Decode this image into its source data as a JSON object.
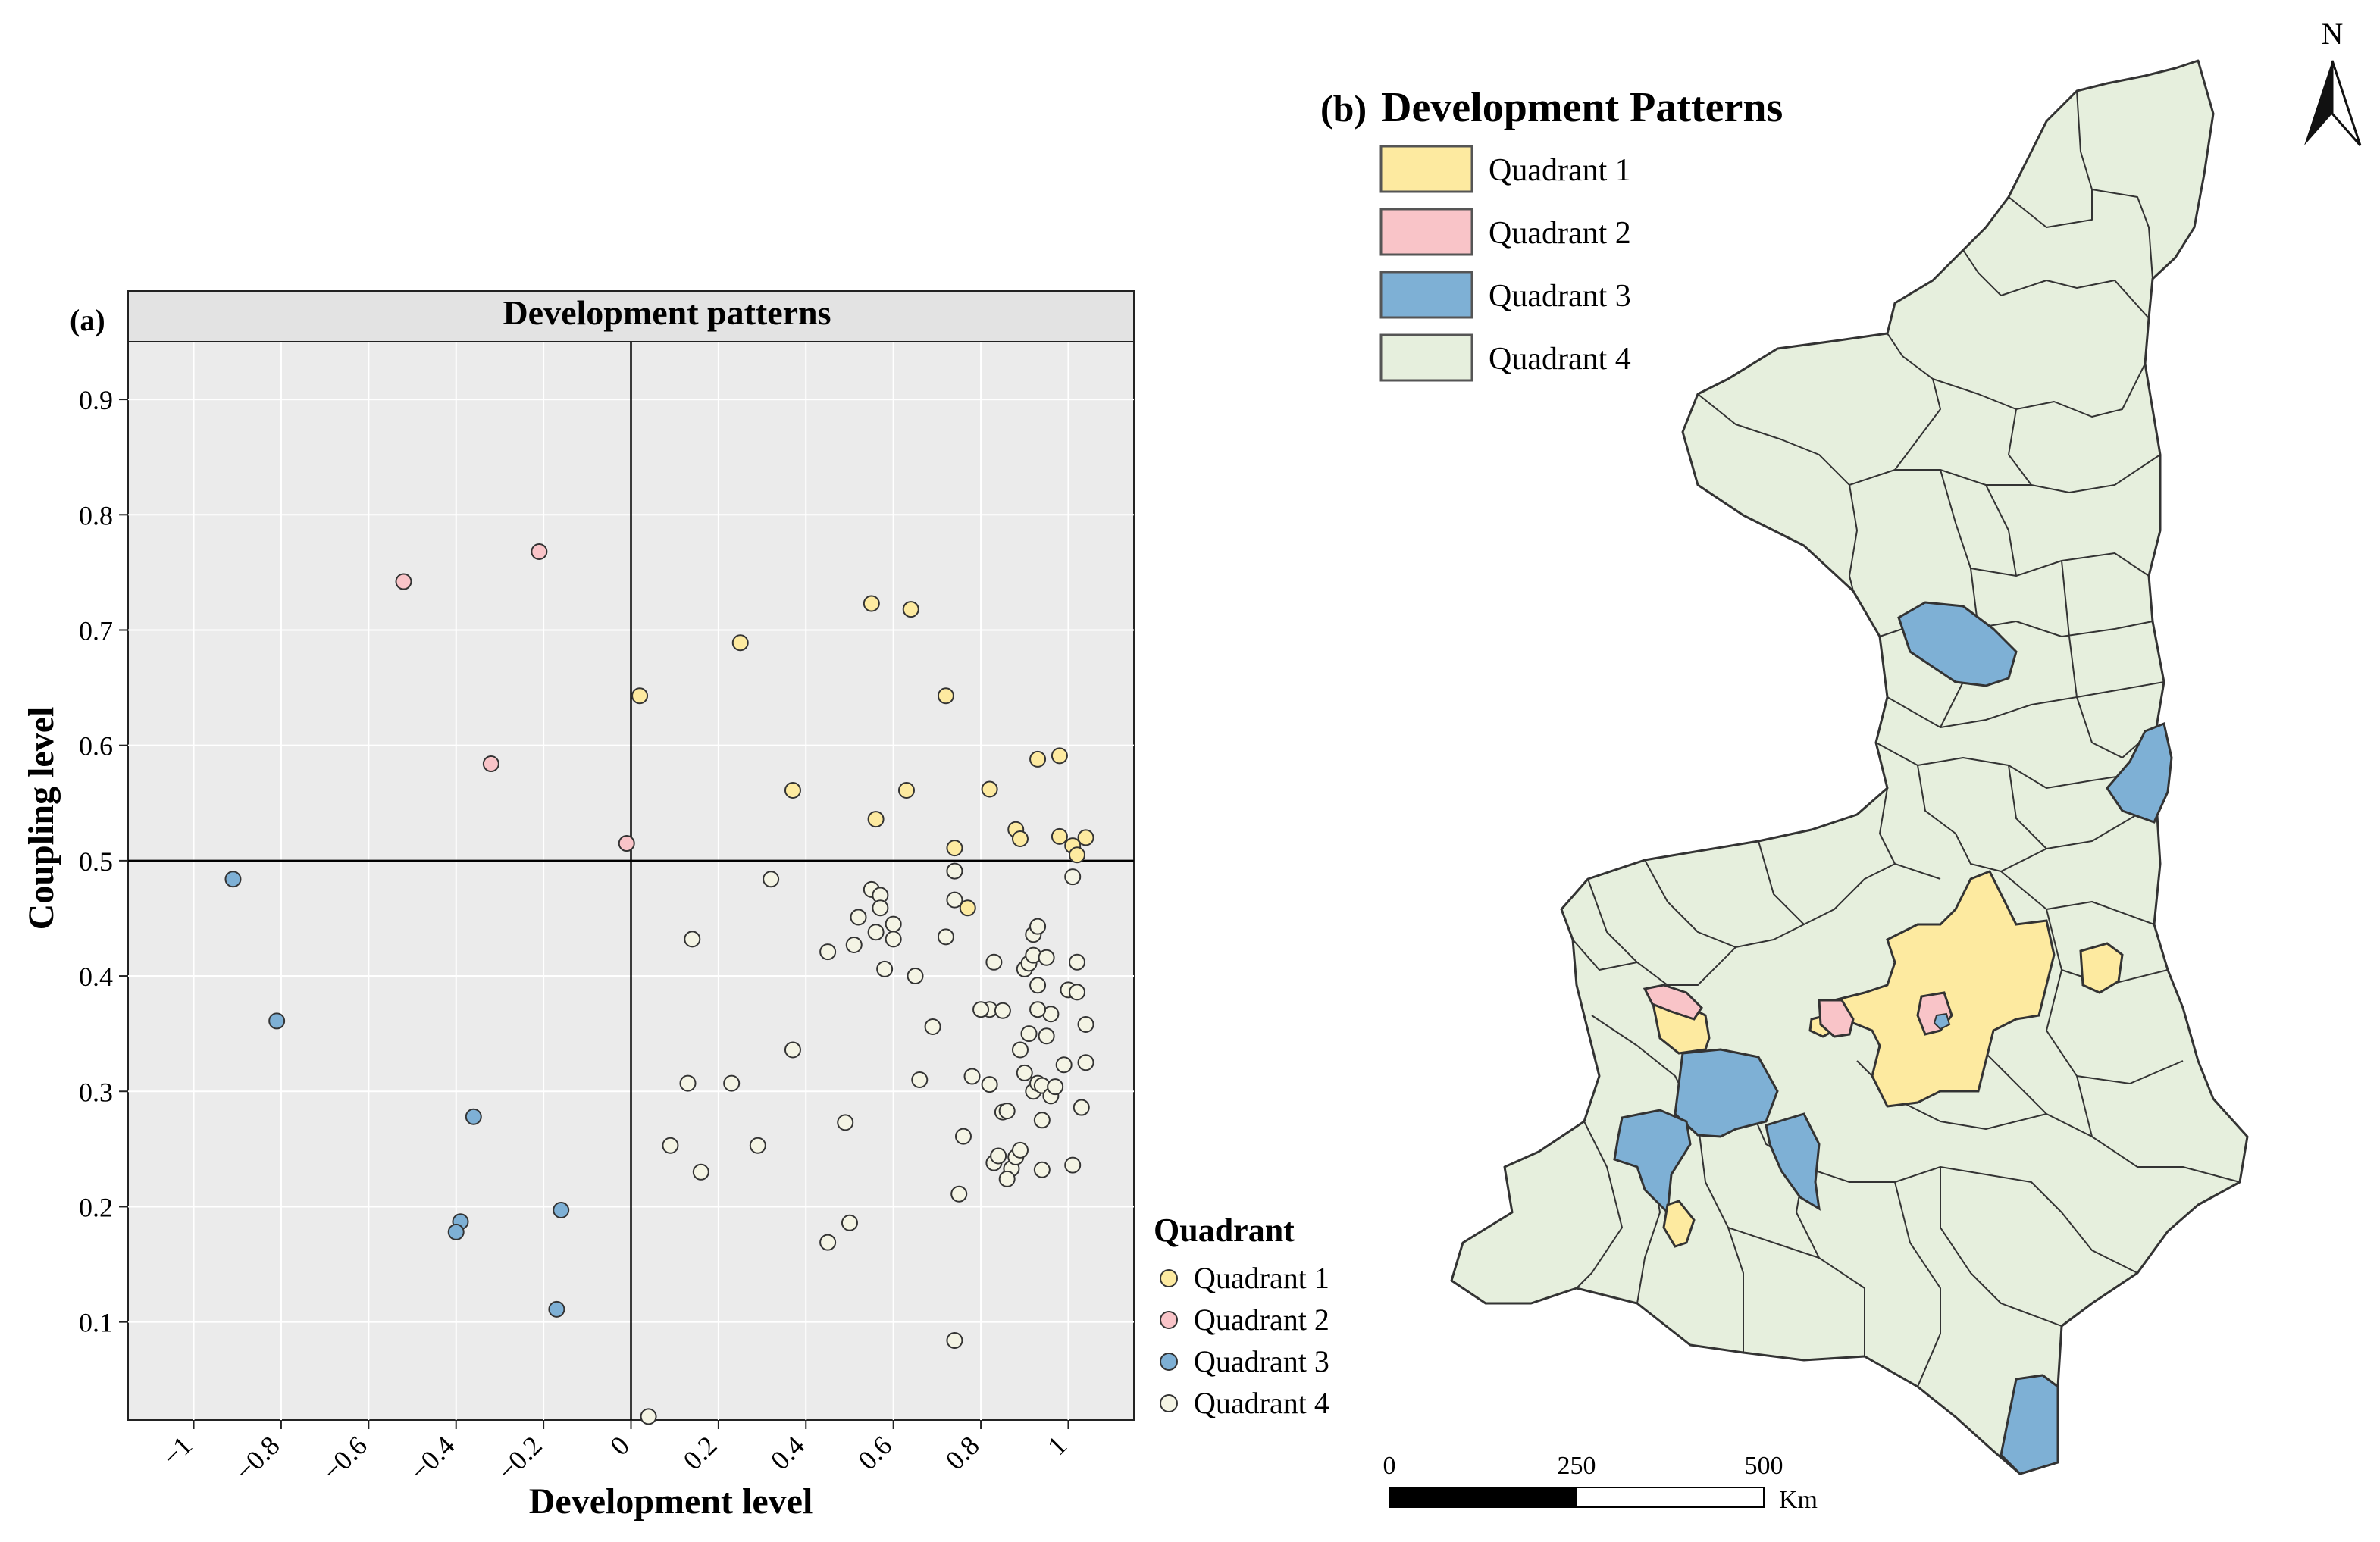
{
  "panel_a": {
    "label": "(a)",
    "strip_title": "Development patterns"
  },
  "panel_b": {
    "label": "(b)",
    "title": "Development Patterns",
    "legend": [
      "Quadrant 1",
      "Quadrant 2",
      "Quadrant 3",
      "Quadrant 4"
    ],
    "north_label": "N",
    "scalebar": {
      "ticks": [
        "0",
        "250",
        "500"
      ],
      "unit": "Km"
    }
  },
  "colors": {
    "q1": "#fdeaa0",
    "q2": "#f9c4c8",
    "q3": "#7eb0d5",
    "q4": "#e6efdd",
    "panel_bg": "#ebebeb",
    "grid": "#ffffff"
  },
  "chart_data": {
    "type": "scatter",
    "title": "Development patterns",
    "xlabel": "Development level",
    "ylabel": "Coupling level",
    "xlim": [
      -1.15,
      1.15
    ],
    "ylim": [
      0.015,
      0.95
    ],
    "xticks": [
      -1,
      -0.8,
      -0.6,
      -0.4,
      -0.2,
      0,
      0.2,
      0.4,
      0.6,
      0.8,
      1
    ],
    "xtick_labels": [
      "−1",
      "−0.8",
      "−0.6",
      "−0.4",
      "−0.2",
      "0",
      "0.2",
      "0.4",
      "0.6",
      "0.8",
      "1"
    ],
    "yticks": [
      0.1,
      0.2,
      0.3,
      0.4,
      0.5,
      0.6,
      0.7,
      0.8,
      0.9
    ],
    "ytick_labels": [
      "0.1",
      "0.2",
      "0.3",
      "0.4",
      "0.5",
      "0.6",
      "0.7",
      "0.8",
      "0.9"
    ],
    "reference_lines": {
      "x": 0,
      "y": 0.5
    },
    "legend_title": "Quadrant",
    "series": [
      {
        "name": "Quadrant 1",
        "points": [
          [
            0.55,
            0.723
          ],
          [
            0.64,
            0.718
          ],
          [
            0.25,
            0.689
          ],
          [
            0.02,
            0.643
          ],
          [
            0.72,
            0.643
          ],
          [
            0.93,
            0.588
          ],
          [
            0.98,
            0.591
          ],
          [
            0.37,
            0.561
          ],
          [
            0.63,
            0.561
          ],
          [
            0.82,
            0.562
          ],
          [
            0.56,
            0.536
          ],
          [
            0.88,
            0.527
          ],
          [
            0.89,
            0.519
          ],
          [
            0.98,
            0.521
          ],
          [
            1.01,
            0.513
          ],
          [
            1.02,
            0.505
          ],
          [
            1.04,
            0.52
          ],
          [
            0.74,
            0.511
          ],
          [
            0.77,
            0.459
          ]
        ]
      },
      {
        "name": "Quadrant 2",
        "points": [
          [
            -0.52,
            0.742
          ],
          [
            -0.21,
            0.768
          ],
          [
            -0.32,
            0.584
          ],
          [
            -0.01,
            0.515
          ]
        ]
      },
      {
        "name": "Quadrant 3",
        "points": [
          [
            -0.91,
            0.484
          ],
          [
            -0.81,
            0.361
          ],
          [
            -0.36,
            0.278
          ],
          [
            -0.39,
            0.187
          ],
          [
            -0.4,
            0.178
          ],
          [
            -0.16,
            0.197
          ],
          [
            -0.17,
            0.111
          ]
        ]
      },
      {
        "name": "Quadrant 4",
        "points": [
          [
            0.32,
            0.484
          ],
          [
            0.14,
            0.432
          ],
          [
            0.45,
            0.421
          ],
          [
            0.51,
            0.427
          ],
          [
            0.52,
            0.451
          ],
          [
            0.55,
            0.475
          ],
          [
            0.57,
            0.47
          ],
          [
            0.57,
            0.459
          ],
          [
            0.56,
            0.438
          ],
          [
            0.58,
            0.406
          ],
          [
            0.6,
            0.445
          ],
          [
            0.6,
            0.432
          ],
          [
            0.65,
            0.4
          ],
          [
            0.72,
            0.434
          ],
          [
            0.74,
            0.491
          ],
          [
            0.74,
            0.466
          ],
          [
            0.83,
            0.412
          ],
          [
            0.82,
            0.371
          ],
          [
            0.8,
            0.371
          ],
          [
            0.85,
            0.37
          ],
          [
            0.9,
            0.406
          ],
          [
            0.91,
            0.411
          ],
          [
            0.92,
            0.418
          ],
          [
            0.92,
            0.436
          ],
          [
            0.93,
            0.443
          ],
          [
            0.95,
            0.416
          ],
          [
            0.93,
            0.392
          ],
          [
            0.96,
            0.367
          ],
          [
            0.91,
            0.35
          ],
          [
            0.93,
            0.371
          ],
          [
            0.95,
            0.348
          ],
          [
            0.89,
            0.336
          ],
          [
            0.9,
            0.316
          ],
          [
            0.92,
            0.3
          ],
          [
            0.93,
            0.307
          ],
          [
            0.94,
            0.305
          ],
          [
            0.96,
            0.296
          ],
          [
            0.97,
            0.304
          ],
          [
            0.99,
            0.323
          ],
          [
            1.0,
            0.388
          ],
          [
            1.02,
            0.386
          ],
          [
            1.02,
            0.412
          ],
          [
            1.01,
            0.486
          ],
          [
            1.04,
            0.358
          ],
          [
            1.04,
            0.325
          ],
          [
            1.03,
            0.286
          ],
          [
            1.01,
            0.236
          ],
          [
            0.78,
            0.313
          ],
          [
            0.82,
            0.306
          ],
          [
            0.69,
            0.356
          ],
          [
            0.66,
            0.31
          ],
          [
            0.37,
            0.336
          ],
          [
            0.13,
            0.307
          ],
          [
            0.23,
            0.307
          ],
          [
            0.49,
            0.273
          ],
          [
            0.29,
            0.253
          ],
          [
            0.09,
            0.253
          ],
          [
            0.76,
            0.261
          ],
          [
            0.85,
            0.282
          ],
          [
            0.86,
            0.283
          ],
          [
            0.94,
            0.275
          ],
          [
            0.83,
            0.238
          ],
          [
            0.84,
            0.244
          ],
          [
            0.87,
            0.233
          ],
          [
            0.88,
            0.243
          ],
          [
            0.89,
            0.249
          ],
          [
            0.94,
            0.232
          ],
          [
            0.86,
            0.224
          ],
          [
            0.16,
            0.23
          ],
          [
            0.75,
            0.211
          ],
          [
            0.5,
            0.186
          ],
          [
            0.45,
            0.169
          ],
          [
            0.74,
            0.084
          ],
          [
            0.04,
            0.018
          ]
        ]
      }
    ]
  }
}
